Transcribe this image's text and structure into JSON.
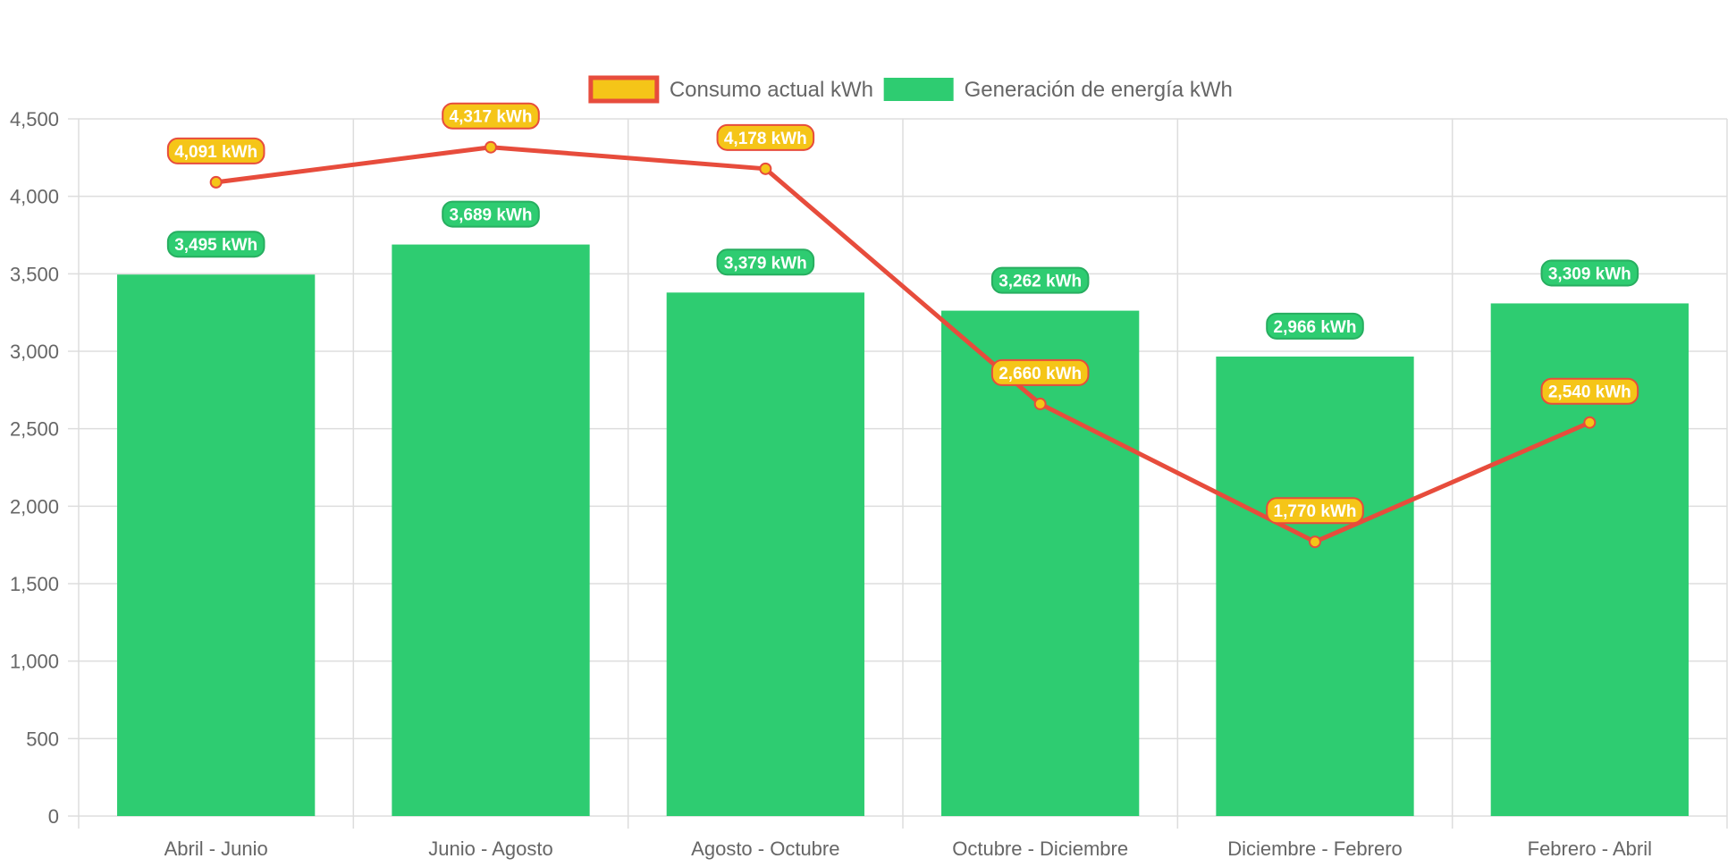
{
  "colors": {
    "consumo_fill": "#f5c518",
    "consumo_line": "#e74c3c",
    "generacion_fill": "#2ecc71",
    "generacion_border": "#27ae60",
    "grid": "#dddddd",
    "text": "#666666"
  },
  "legend": {
    "position": "top",
    "items": [
      {
        "label": "Consumo actual kWh",
        "swatch": "consumo"
      },
      {
        "label": "Generación de energía kWh",
        "swatch": "generacion"
      }
    ]
  },
  "chart_data": {
    "type": "bar",
    "title": "",
    "xlabel": "",
    "ylabel": "",
    "ylim": [
      0,
      4500
    ],
    "yticks": [
      0,
      500,
      1000,
      1500,
      2000,
      2500,
      3000,
      3500,
      4000,
      4500
    ],
    "ytick_labels": [
      "0",
      "500",
      "1,000",
      "1,500",
      "2,000",
      "2,500",
      "3,000",
      "3,500",
      "4,000",
      "4,500"
    ],
    "grid": true,
    "categories": [
      "Abril - Junio",
      "Junio - Agosto",
      "Agosto - Octubre",
      "Octubre - Diciembre",
      "Diciembre - Febrero",
      "Febrero - Abril"
    ],
    "series": [
      {
        "name": "Consumo actual kWh",
        "type": "line",
        "values": [
          4091,
          4317,
          4178,
          2660,
          1770,
          2540
        ],
        "labels": [
          "4,091 kWh",
          "4,317 kWh",
          "4,178 kWh",
          "2,660 kWh",
          "1,770 kWh",
          "2,540 kWh"
        ]
      },
      {
        "name": "Generación de energía kWh",
        "type": "bar",
        "values": [
          3495,
          3689,
          3379,
          3262,
          2966,
          3309
        ],
        "labels": [
          "3,495 kWh",
          "3,689 kWh",
          "3,379 kWh",
          "3,262 kWh",
          "2,966 kWh",
          "3,309 kWh"
        ]
      }
    ]
  }
}
